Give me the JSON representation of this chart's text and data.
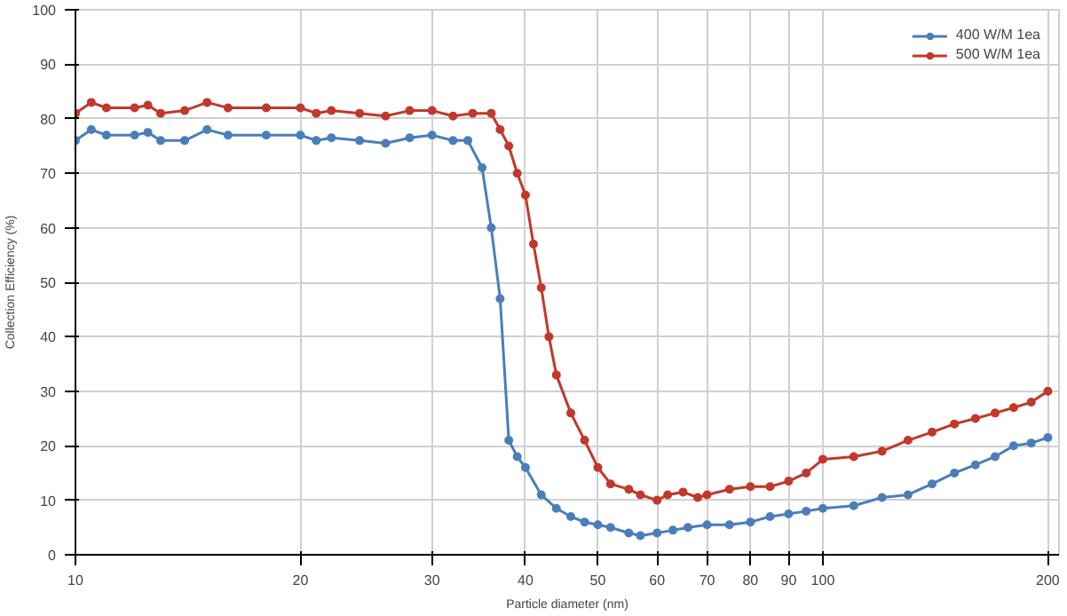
{
  "chart_data": {
    "type": "line",
    "xlabel": "Particle diameter (nm)",
    "ylabel": "Collection Efficiency (%)",
    "log": "x",
    "xlim": [
      10,
      207
    ],
    "xticks": [
      10,
      20,
      30,
      40,
      50,
      60,
      70,
      80,
      90,
      100,
      200
    ],
    "ylim": [
      0,
      100
    ],
    "yticks": [
      0,
      10,
      20,
      30,
      40,
      50,
      60,
      70,
      80,
      90,
      100
    ],
    "grid": true,
    "legend": "top right",
    "marker": "circle",
    "line_style": "solid",
    "series": [
      {
        "name": "400 W/M 1ea",
        "color": "#4a7ebb",
        "x": [
          10,
          10.5,
          11,
          12,
          12.5,
          13,
          14,
          15,
          16,
          18,
          20,
          21,
          22,
          24,
          26,
          28,
          30,
          32,
          33.5,
          35,
          36,
          37,
          38,
          39,
          40,
          42,
          44,
          46,
          48,
          50,
          52,
          55,
          57,
          60,
          63,
          66,
          70,
          75,
          80,
          85,
          90,
          95,
          100,
          110,
          120,
          130,
          140,
          150,
          160,
          170,
          180,
          190,
          200
        ],
        "values": [
          76,
          78,
          77,
          77,
          77.5,
          76,
          76,
          78,
          77,
          77,
          77,
          76,
          76.5,
          76,
          75.5,
          76.5,
          77,
          76,
          76,
          71,
          60,
          47,
          21,
          18,
          16,
          11,
          8.5,
          7,
          6,
          5.5,
          5,
          4,
          3.5,
          4,
          4.5,
          5,
          5.5,
          5.5,
          6,
          7,
          7.5,
          8,
          8.5,
          9,
          10.5,
          11,
          13,
          15,
          16.5,
          18,
          20,
          20.5,
          21.5
        ]
      },
      {
        "name": "500 W/M 1ea",
        "color": "#c0392b",
        "x": [
          10,
          10.5,
          11,
          12,
          12.5,
          13,
          14,
          15,
          16,
          18,
          20,
          21,
          22,
          24,
          26,
          28,
          30,
          32,
          34,
          36,
          37,
          38,
          39,
          40,
          41,
          42,
          43,
          44,
          46,
          48,
          50,
          52,
          55,
          57,
          60,
          62,
          65,
          68,
          70,
          75,
          80,
          85,
          90,
          95,
          100,
          110,
          120,
          130,
          140,
          150,
          160,
          170,
          180,
          190,
          200
        ],
        "values": [
          81,
          83,
          82,
          82,
          82.5,
          81,
          81.5,
          83,
          82,
          82,
          82,
          81,
          81.5,
          81,
          80.5,
          81.5,
          81.5,
          80.5,
          81,
          81,
          78,
          75,
          70,
          66,
          57,
          49,
          40,
          33,
          26,
          21,
          16,
          13,
          12,
          11,
          10,
          11,
          11.5,
          10.5,
          11,
          12,
          12.5,
          12.5,
          13.5,
          15,
          17.5,
          18,
          19,
          21,
          22.5,
          24,
          25,
          26,
          27,
          28,
          30
        ]
      }
    ]
  }
}
